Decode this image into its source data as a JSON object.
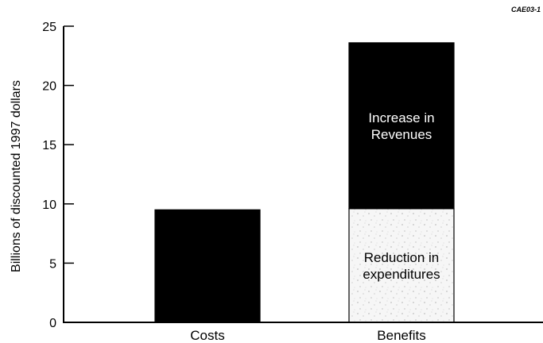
{
  "figure_code": "CAE03-1",
  "chart_data": {
    "type": "bar",
    "stacked": true,
    "categories": [
      "Costs",
      "Benefits"
    ],
    "ylabel": "Billions of discounted 1997 dollars",
    "xlabel": "",
    "ylim": [
      0,
      25
    ],
    "yticks": [
      0,
      5,
      10,
      15,
      20,
      25
    ],
    "grid": false,
    "segments": [
      {
        "category": "Costs",
        "start": 0,
        "end": 9.5,
        "label": "",
        "fill": "#000000"
      },
      {
        "category": "Benefits",
        "start": 0,
        "end": 9.6,
        "label_lines": [
          "Reduction in",
          "expenditures"
        ],
        "fill": "#f4f4f4",
        "text_color": "#000000"
      },
      {
        "category": "Benefits",
        "start": 9.6,
        "end": 23.6,
        "label_lines": [
          "Increase in",
          "Revenues"
        ],
        "fill": "#000000",
        "text_color": "#ffffff"
      }
    ]
  }
}
